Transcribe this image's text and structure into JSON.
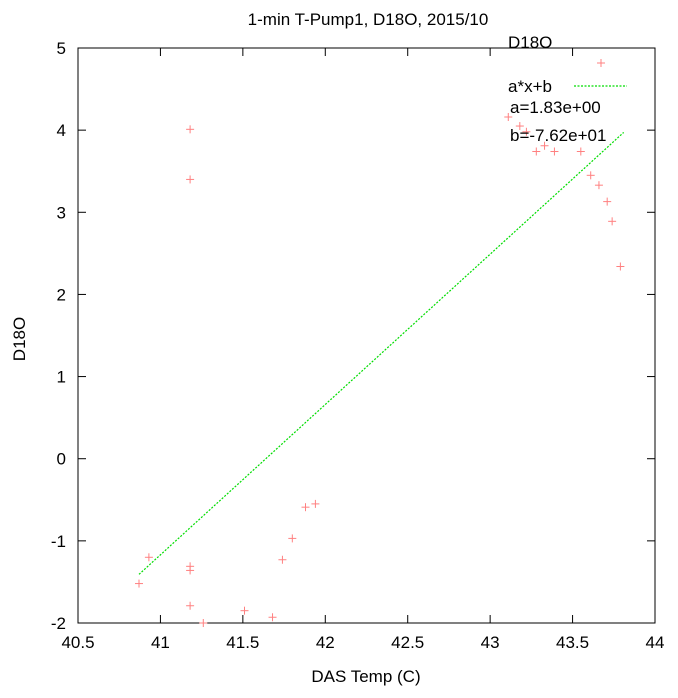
{
  "chart_data": {
    "type": "scatter",
    "title": "1-min T-Pump1, D18O, 2015/10",
    "xlabel": "DAS Temp (C)",
    "ylabel": "D18O",
    "xlim": [
      40.5,
      44
    ],
    "ylim": [
      -2,
      5
    ],
    "xticks": [
      "40.5",
      "41",
      "41.5",
      "42",
      "42.5",
      "43",
      "43.5",
      "44"
    ],
    "yticks": [
      "-2",
      "-1",
      "0",
      "1",
      "2",
      "3",
      "4",
      "5"
    ],
    "grid": false,
    "legend_position": "top-right",
    "series": [
      {
        "name": "D18O",
        "kind": "points",
        "marker": "+",
        "color": "#ff8080",
        "points": [
          [
            40.87,
            -1.52
          ],
          [
            40.93,
            -1.2
          ],
          [
            41.18,
            4.01
          ],
          [
            41.18,
            3.4
          ],
          [
            41.18,
            -1.31
          ],
          [
            41.18,
            -1.36
          ],
          [
            41.18,
            -1.79
          ],
          [
            41.26,
            -2.0
          ],
          [
            41.51,
            -1.85
          ],
          [
            41.68,
            -1.93
          ],
          [
            41.74,
            -1.23
          ],
          [
            41.8,
            -0.97
          ],
          [
            41.88,
            -0.59
          ],
          [
            41.94,
            -0.55
          ],
          [
            43.11,
            4.16
          ],
          [
            43.18,
            4.05
          ],
          [
            43.22,
            3.98
          ],
          [
            43.28,
            3.74
          ],
          [
            43.33,
            3.81
          ],
          [
            43.39,
            3.74
          ],
          [
            43.55,
            3.74
          ],
          [
            43.61,
            3.45
          ],
          [
            43.66,
            3.33
          ],
          [
            43.71,
            3.13
          ],
          [
            43.74,
            2.89
          ],
          [
            43.79,
            2.34
          ]
        ]
      },
      {
        "name": "a*x+b",
        "kind": "line",
        "color": "#00dd00",
        "dashed": true,
        "x_range": [
          40.87,
          43.81
        ],
        "a": 1.83,
        "b": -76.2
      }
    ],
    "annotations": [
      "a=1.83e+00",
      "b=-7.62e+01"
    ]
  }
}
